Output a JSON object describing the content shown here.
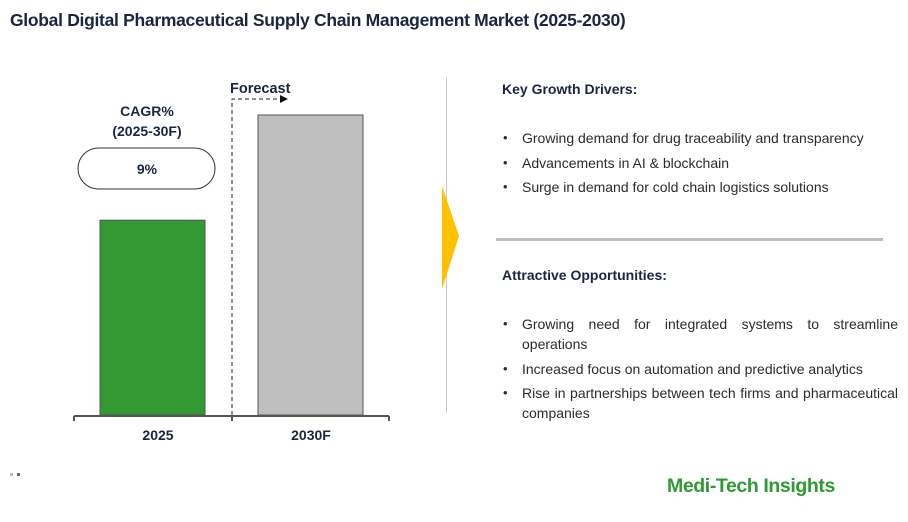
{
  "page": {
    "title": "Global Digital Pharmaceutical Supply Chain Management Market (2025-2030)",
    "brand": "Medi-Tech Insights",
    "colors": {
      "accent_green": "#339933",
      "forecast_gray": "#bfbfbf",
      "arrow_yellow": "#ffc000",
      "brand_green": "#2e9a32"
    }
  },
  "cagr": {
    "label_line1": "CAGR%",
    "label_line2": "(2025-30F)",
    "value": "9%"
  },
  "forecast_label": "Forecast",
  "drivers": {
    "heading": "Key Growth Drivers:",
    "items": [
      "Growing demand for drug traceability and transparency",
      "Advancements in AI & blockchain",
      "Surge in demand for cold chain logistics solutions"
    ]
  },
  "opportunities": {
    "heading": "Attractive Opportunities:",
    "items": [
      "Growing need for integrated systems to streamline operations",
      "Increased focus on automation and predictive analytics",
      "Rise in partnerships between tech firms and pharmaceutical companies"
    ]
  },
  "chart_data": {
    "type": "bar",
    "title": "Global Digital Pharmaceutical Supply Chain Management Market (2025-2030)",
    "categories": [
      "2025",
      "2030F"
    ],
    "values": [
      1.0,
      1.54
    ],
    "value_note": "relative bar heights; no axis values shown",
    "colors": [
      "#339933",
      "#bfbfbf"
    ],
    "xlabel": "",
    "ylabel": "",
    "annotations": [
      "CAGR% (2025-30F) 9%",
      "Forecast"
    ],
    "grid": false,
    "legend": "none"
  }
}
